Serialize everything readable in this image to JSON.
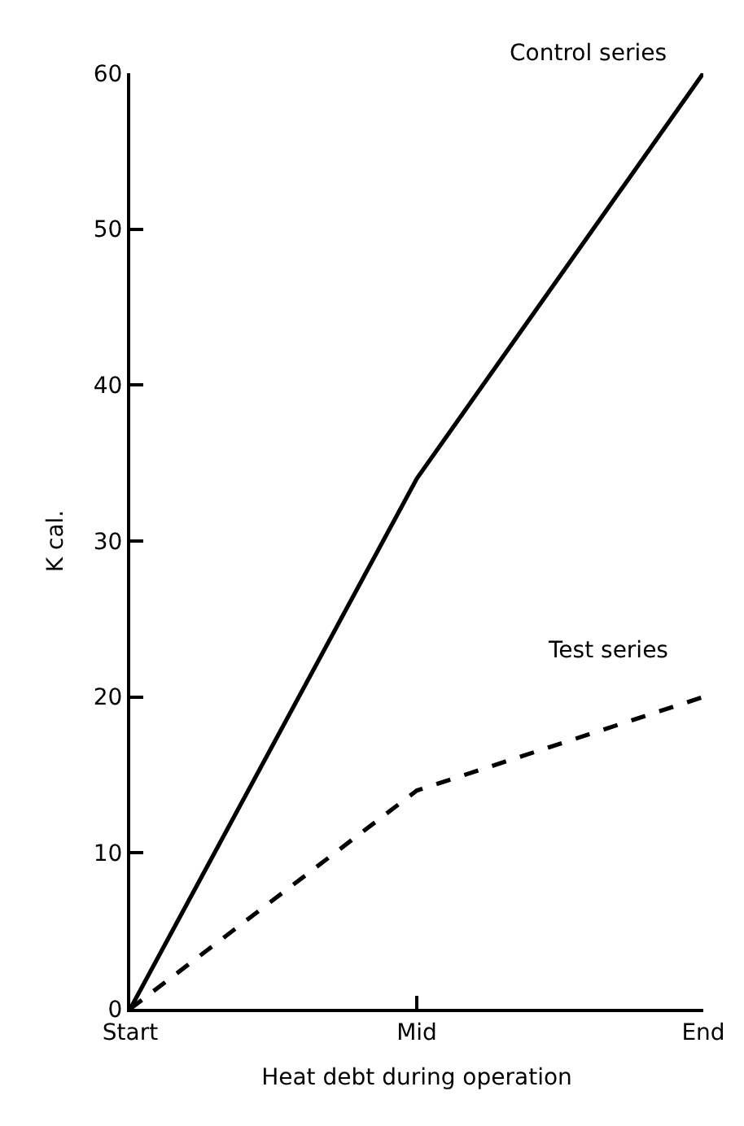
{
  "chart_data": {
    "type": "line",
    "xlabel": "Heat debt during operation",
    "ylabel": "K cal.",
    "categories": [
      "Start",
      "Mid",
      "End"
    ],
    "series": [
      {
        "name": "Control series",
        "color": "#000000",
        "values": [
          0,
          34,
          60
        ],
        "line_style": "solid"
      },
      {
        "name": "Test series",
        "color": "#000000",
        "values": [
          0,
          14,
          20
        ],
        "line_style": "dashed"
      }
    ],
    "ylim": [
      0,
      60
    ],
    "yticks": [
      0,
      10,
      20,
      30,
      40,
      50,
      60
    ],
    "legend": false,
    "marker": "none"
  }
}
